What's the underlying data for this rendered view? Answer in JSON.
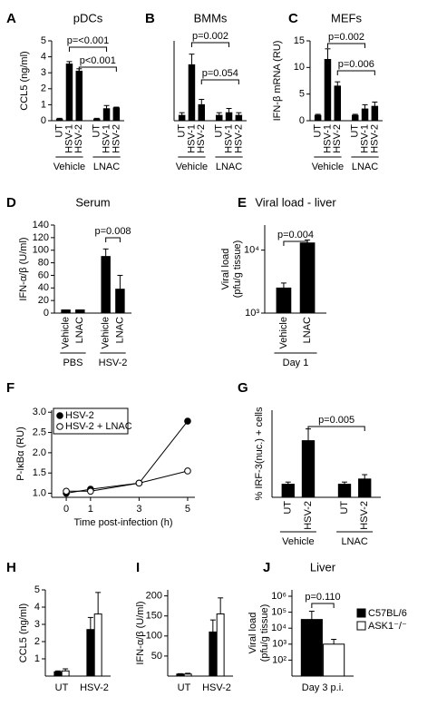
{
  "chart_data": [
    {
      "panel": "A",
      "type": "bar",
      "title": "pDCs",
      "y_label": "CCL5 (ng/ml)",
      "categories": [
        "UT",
        "HSV-1",
        "HSV-2",
        "UT",
        "HSV-1",
        "HSV-2"
      ],
      "groups": [
        "Vehicle",
        "LNAC"
      ],
      "values": [
        0.1,
        3.55,
        3.1,
        0.1,
        0.75,
        0.8
      ],
      "errors": [
        0.05,
        0.15,
        0.15,
        0.05,
        0.2,
        0.05
      ],
      "color": "#000000",
      "ylim": [
        0,
        5
      ],
      "yticks": [
        0,
        1,
        2,
        3,
        4,
        5
      ],
      "annotations": [
        "p=<0.001",
        "p<0.001"
      ]
    },
    {
      "panel": "B",
      "type": "bar",
      "title": "BMMs",
      "categories": [
        "UT",
        "HSV-1",
        "HSV-2",
        "UT",
        "HSV-1",
        "HSV-2"
      ],
      "groups": [
        "Vehicle",
        "LNAC"
      ],
      "values": [
        0.1,
        1.05,
        0.3,
        0.1,
        0.15,
        0.1
      ],
      "errors": [
        0.05,
        0.2,
        0.1,
        0.05,
        0.08,
        0.05
      ],
      "color": "#000000",
      "ylim": [
        0,
        1.5
      ],
      "annotations": [
        "p=0.002",
        "p=0.054"
      ]
    },
    {
      "panel": "C",
      "type": "bar",
      "title": "MEFs",
      "y_label": "IFN-β mRNA (RU)",
      "categories": [
        "UT",
        "HSV-1",
        "HSV-2",
        "UT",
        "HSV-1",
        "HSV-2"
      ],
      "groups": [
        "Vehicle",
        "LNAC"
      ],
      "values": [
        1,
        11.5,
        6.5,
        1,
        2.2,
        2.7
      ],
      "errors": [
        0.2,
        2,
        0.8,
        0.2,
        0.8,
        0.8
      ],
      "color": "#000000",
      "ylim": [
        0,
        15
      ],
      "yticks": [
        0,
        5,
        10,
        15
      ],
      "annotations": [
        "p=0.002",
        "p=0.006"
      ]
    },
    {
      "panel": "D",
      "type": "bar",
      "title": "Serum",
      "y_label": "IFN-α/β (U/ml)",
      "categories": [
        "Vehicle",
        "LNAC",
        "Vehicle",
        "LNAC"
      ],
      "groups": [
        "PBS",
        "HSV-2"
      ],
      "values": [
        5,
        5,
        90,
        38
      ],
      "errors": [
        0,
        0,
        12,
        22
      ],
      "color": "#000000",
      "ylim": [
        0,
        140
      ],
      "yticks": [
        0,
        20,
        40,
        60,
        80,
        100,
        120,
        140
      ],
      "annotations": [
        "p=0.008"
      ]
    },
    {
      "panel": "E",
      "type": "bar",
      "title": "Viral load - liver",
      "y_label": [
        "Viral load",
        "(pfu/g tissue)"
      ],
      "categories": [
        "Vehicle",
        "LNAC"
      ],
      "groups": [
        "Day 1"
      ],
      "log_scale": true,
      "values": [
        2500,
        13000
      ],
      "errors": [
        500,
        1500
      ],
      "color": "#000000",
      "ylim": [
        1000,
        25000
      ],
      "yticks": [
        {
          "value": 1000,
          "label": "10³"
        },
        {
          "value": 10000,
          "label": "10⁴"
        }
      ],
      "annotations": [
        "p=0.004"
      ]
    },
    {
      "panel": "F",
      "type": "line",
      "y_label": "P-IκBα (RU)",
      "x_label": "Time post-infection (h)",
      "x": [
        0,
        1,
        3,
        5
      ],
      "xlim": [
        -0.6,
        5.3
      ],
      "xticks": [
        0,
        1,
        3,
        5
      ],
      "ylim": [
        0.9,
        3.05
      ],
      "yticks": [
        {
          "value": 1,
          "label": "1.0"
        },
        {
          "value": 1.5,
          "label": "1.5"
        },
        {
          "value": 2,
          "label": "2.0"
        },
        {
          "value": 2.5,
          "label": "2.5"
        },
        {
          "value": 3,
          "label": "3.0"
        }
      ],
      "series": [
        {
          "name": "HSV-2",
          "color": "#000000",
          "fill": "#000000",
          "values": [
            1.0,
            1.1,
            1.25,
            2.78
          ]
        },
        {
          "name": "HSV-2 + LNAC",
          "color": "#000000",
          "fill": "#ffffff",
          "values": [
            1.05,
            1.05,
            1.25,
            1.55
          ]
        }
      ],
      "legend": "upper left"
    },
    {
      "panel": "G",
      "type": "bar",
      "y_label": "% IRF-3(nuc.) + cells",
      "categories": [
        "UT",
        "HSV-2",
        "UT",
        "HSV-2"
      ],
      "groups": [
        "Vehicle",
        "LNAC"
      ],
      "values": [
        3,
        13,
        3,
        4.2
      ],
      "errors": [
        0.5,
        2.7,
        0.5,
        1
      ],
      "color": "#000000",
      "ylim": [
        0,
        20
      ],
      "annotations": [
        "p=0.005"
      ]
    },
    {
      "panel": "H",
      "type": "bar",
      "y_label": "CCL5 (ng/ml)",
      "categories": [
        "UT",
        "HSV-2"
      ],
      "series": [
        {
          "color": "#000000",
          "values": [
            0.25,
            2.7
          ],
          "errors": [
            0.05,
            0.7
          ]
        },
        {
          "color": "#ffffff",
          "values": [
            0.3,
            3.6
          ],
          "errors": [
            0.12,
            1.25
          ]
        }
      ],
      "ylim": [
        0,
        5
      ],
      "yticks": [
        1,
        2,
        3,
        4,
        5
      ]
    },
    {
      "panel": "I",
      "type": "bar",
      "y_label": "IFN-α/β (U/ml)",
      "categories": [
        "UT",
        "HSV-2"
      ],
      "series": [
        {
          "color": "#000000",
          "values": [
            5,
            110
          ],
          "errors": [
            1,
            30
          ]
        },
        {
          "color": "#ffffff",
          "values": [
            5,
            155
          ],
          "errors": [
            2,
            40
          ]
        }
      ],
      "ylim": [
        0,
        215
      ],
      "yticks": [
        50,
        100,
        150,
        200
      ]
    },
    {
      "panel": "J",
      "type": "bar",
      "title": "Liver",
      "y_label": [
        "Viral load",
        "(pfu/g tissue)"
      ],
      "categories": [
        "Day 3 p.i."
      ],
      "log_scale": true,
      "series": [
        {
          "name": "C57BL/6",
          "color": "#000000",
          "values": [
            35000
          ],
          "errors": [
            80000
          ]
        },
        {
          "name": "ASK1⁻/⁻",
          "color": "#ffffff",
          "values": [
            1000
          ],
          "errors": [
            1000
          ]
        }
      ],
      "ylim": [
        10,
        2500000
      ],
      "yticks": [
        {
          "value": 100,
          "label": "10²"
        },
        {
          "value": 1000,
          "label": "10³"
        },
        {
          "value": 10000,
          "label": "10⁴"
        },
        {
          "value": 100000,
          "label": "10⁵"
        },
        {
          "value": 1000000,
          "label": "10⁶"
        }
      ],
      "annotations": [
        "p=0.110"
      ],
      "legend": "right"
    }
  ]
}
